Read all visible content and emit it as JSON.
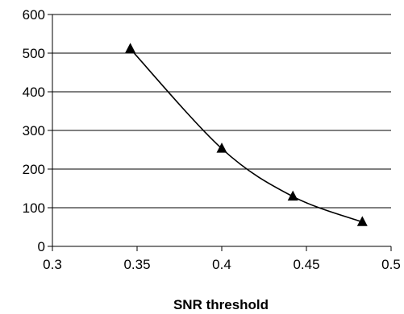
{
  "chart_data": {
    "type": "line",
    "title": "",
    "xlabel": "SNR threshold",
    "ylabel": "",
    "xlim": [
      0.3,
      0.5
    ],
    "ylim": [
      0,
      600
    ],
    "x_ticks": [
      0.3,
      0.35,
      0.4,
      0.45,
      0.5
    ],
    "x_tick_labels": [
      "0.3",
      "0.35",
      "0.4",
      "0.45",
      "0.5"
    ],
    "y_ticks": [
      0,
      100,
      200,
      300,
      400,
      500,
      600
    ],
    "y_tick_labels": [
      "0",
      "100",
      "200",
      "300",
      "400",
      "500",
      "600"
    ],
    "grid": "horizontal",
    "legend": "none",
    "series": [
      {
        "marker": "triangle",
        "color": "#000000",
        "smooth": true,
        "x": [
          0.346,
          0.4,
          0.442,
          0.483
        ],
        "y": [
          511,
          253,
          129,
          63
        ]
      }
    ]
  }
}
